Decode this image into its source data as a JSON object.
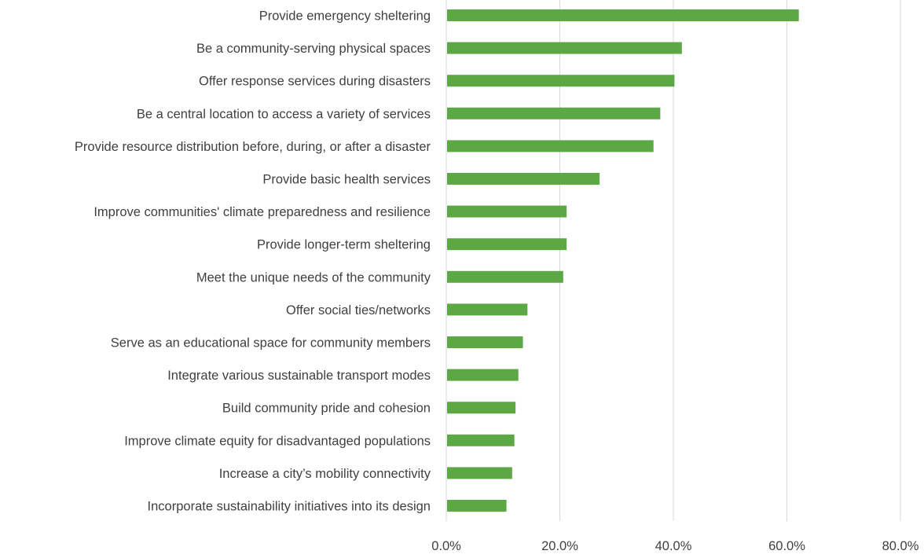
{
  "chart_data": {
    "type": "bar",
    "orientation": "horizontal",
    "title": "",
    "xlabel": "",
    "ylabel": "",
    "xlim": [
      0,
      80
    ],
    "x_ticks": [
      "0.0%",
      "20.0%",
      "40.0%",
      "60.0%",
      "80.0%"
    ],
    "grid": "vertical",
    "legend": "none",
    "bar_color": "#5ba845",
    "grid_color": "#d9d9d9",
    "categories": [
      "Provide emergency sheltering",
      "Be a community-serving physical spaces",
      "Offer response services during disasters",
      "Be a central location to access a variety of services",
      "Provide resource distribution before, during, or after a disaster",
      "Provide basic health services",
      "Improve communities' climate preparedness and resilience",
      "Provide longer-term sheltering",
      "Meet the unique needs of the community",
      "Offer social ties/networks",
      "Serve as an educational space for community members",
      "Integrate various sustainable transport modes",
      "Build community pride and cohesion",
      "Improve climate equity for disadvantaged populations",
      "Increase a city’s mobility connectivity",
      "Incorporate sustainability initiatives into its design"
    ],
    "values": [
      62.1,
      41.5,
      40.2,
      37.7,
      36.5,
      27.0,
      21.2,
      21.2,
      20.6,
      14.3,
      13.5,
      12.7,
      12.2,
      12.0,
      11.6,
      10.6
    ]
  }
}
